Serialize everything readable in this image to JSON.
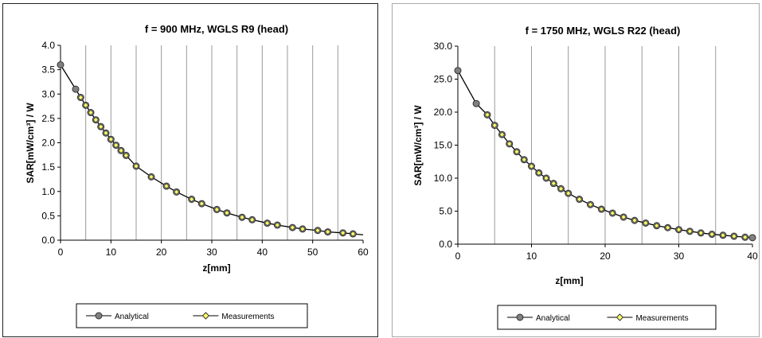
{
  "chart_data": [
    {
      "type": "line",
      "title": "f = 900 MHz, WGLS R9 (head)",
      "xlabel": "z[mm]",
      "ylabel": "SAR[mW/cm³] / W",
      "xlim": [
        0,
        60
      ],
      "ylim": [
        0.0,
        4.0
      ],
      "x_ticks": [
        "0",
        "10",
        "20",
        "30",
        "40",
        "50",
        "60"
      ],
      "y_ticks": [
        "0.0",
        "0.5",
        "1.0",
        "1.5",
        "2.0",
        "2.5",
        "3.0",
        "3.5",
        "4.0"
      ],
      "grid": "vertical",
      "legend_position": "bottom",
      "series": [
        {
          "name": "Analytical",
          "color": "#808080",
          "x": [
            0,
            3,
            4,
            5,
            6,
            7,
            8,
            9,
            10,
            11,
            12,
            13,
            15,
            18,
            21,
            23,
            26,
            28,
            31,
            33,
            36,
            38,
            41,
            43,
            46,
            48,
            51,
            53,
            56,
            58,
            60
          ],
          "y": [
            3.6,
            3.1,
            2.93,
            2.77,
            2.62,
            2.47,
            2.33,
            2.2,
            2.07,
            1.95,
            1.84,
            1.74,
            1.52,
            1.3,
            1.11,
            0.99,
            0.84,
            0.75,
            0.63,
            0.56,
            0.47,
            0.42,
            0.35,
            0.31,
            0.26,
            0.23,
            0.2,
            0.17,
            0.15,
            0.13,
            0.11
          ]
        },
        {
          "name": "Measurements",
          "color": "#ffff66",
          "x": [
            4,
            5,
            6,
            7,
            8,
            9,
            10,
            11,
            12,
            13,
            15,
            18,
            21,
            23,
            26,
            28,
            31,
            33,
            36,
            38,
            41,
            43,
            46,
            48,
            51,
            53,
            56,
            58
          ],
          "y": [
            2.93,
            2.77,
            2.62,
            2.47,
            2.33,
            2.2,
            2.07,
            1.95,
            1.84,
            1.74,
            1.52,
            1.3,
            1.11,
            0.99,
            0.84,
            0.75,
            0.63,
            0.56,
            0.47,
            0.42,
            0.35,
            0.31,
            0.26,
            0.23,
            0.2,
            0.17,
            0.15,
            0.13
          ]
        }
      ]
    },
    {
      "type": "line",
      "title": "f = 1750 MHz, WGLS R22 (head)",
      "xlabel": "z[mm]",
      "ylabel": "SAR[mW/cm³] / W",
      "xlim": [
        0,
        40
      ],
      "ylim": [
        0.0,
        30.0
      ],
      "x_ticks": [
        "0",
        "10",
        "20",
        "30",
        "40"
      ],
      "y_ticks": [
        "0.0",
        "5.0",
        "10.0",
        "15.0",
        "20.0",
        "25.0",
        "30.0"
      ],
      "grid": "vertical",
      "legend_position": "bottom",
      "series": [
        {
          "name": "Analytical",
          "color": "#808080",
          "x": [
            0,
            2.5,
            4,
            5,
            6,
            7,
            8,
            9,
            10,
            11,
            12,
            13,
            14,
            15,
            16.5,
            18,
            19.5,
            21,
            22.5,
            24,
            25.5,
            27,
            28.5,
            30,
            31.5,
            33,
            34.5,
            36,
            37.5,
            39,
            40
          ],
          "y": [
            26.3,
            21.3,
            19.6,
            18.0,
            16.6,
            15.2,
            14.0,
            12.8,
            11.8,
            10.8,
            10.0,
            9.2,
            8.4,
            7.7,
            6.8,
            6.0,
            5.3,
            4.7,
            4.1,
            3.6,
            3.2,
            2.8,
            2.5,
            2.2,
            1.95,
            1.7,
            1.5,
            1.35,
            1.2,
            1.05,
            0.98
          ]
        },
        {
          "name": "Measurements",
          "color": "#ffff66",
          "x": [
            4,
            5,
            6,
            7,
            8,
            9,
            10,
            11,
            12,
            13,
            14,
            15,
            16.5,
            18,
            19.5,
            21,
            22.5,
            24,
            25.5,
            27,
            28.5,
            30,
            31.5,
            33,
            34.5,
            36,
            37.5,
            39
          ],
          "y": [
            19.6,
            18.0,
            16.6,
            15.2,
            14.0,
            12.8,
            11.8,
            10.8,
            10.0,
            9.2,
            8.4,
            7.7,
            6.8,
            6.0,
            5.3,
            4.7,
            4.1,
            3.6,
            3.2,
            2.8,
            2.5,
            2.2,
            1.95,
            1.7,
            1.5,
            1.35,
            1.2,
            1.05
          ]
        }
      ]
    }
  ]
}
